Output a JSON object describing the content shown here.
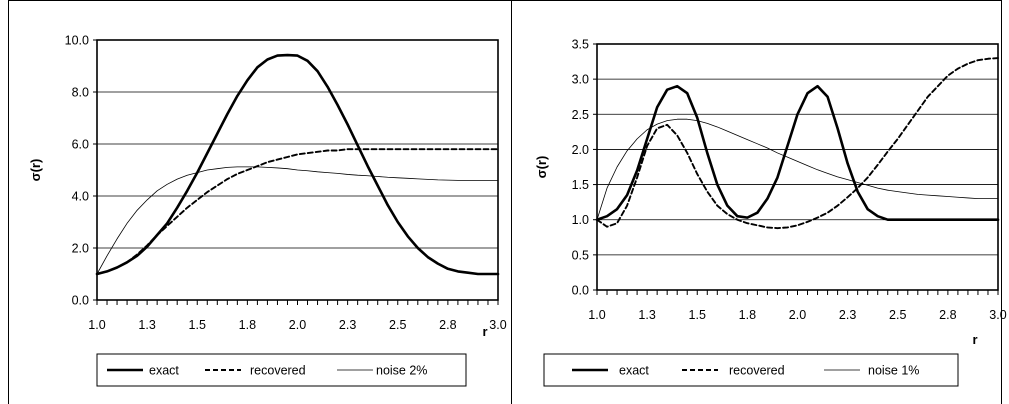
{
  "chart_data": [
    {
      "type": "line",
      "xlabel": "r",
      "ylabel": "σ(r)",
      "xlim": [
        1.0,
        3.0
      ],
      "ylim": [
        0.0,
        10.0
      ],
      "x_ticks": [
        "1.0",
        "1.3",
        "1.5",
        "1.8",
        "2.0",
        "2.3",
        "2.5",
        "2.8",
        "3.0"
      ],
      "y_ticks": [
        "0.0",
        "2.0",
        "4.0",
        "6.0",
        "8.0",
        "10.0"
      ],
      "y_tick_values": [
        0,
        2,
        4,
        6,
        8,
        10
      ],
      "grid": "horizontal",
      "legend_position": "bottom",
      "series": [
        {
          "name": "exact",
          "style": "solid-thick",
          "x": [
            1.0,
            1.05,
            1.1,
            1.15,
            1.2,
            1.25,
            1.3,
            1.35,
            1.4,
            1.45,
            1.5,
            1.55,
            1.6,
            1.65,
            1.7,
            1.75,
            1.8,
            1.85,
            1.9,
            1.95,
            2.0,
            2.05,
            2.1,
            2.15,
            2.2,
            2.25,
            2.3,
            2.35,
            2.4,
            2.45,
            2.5,
            2.55,
            2.6,
            2.65,
            2.7,
            2.75,
            2.8,
            2.85,
            2.9,
            2.95,
            3.0
          ],
          "y": [
            1.0,
            1.1,
            1.25,
            1.45,
            1.7,
            2.05,
            2.5,
            2.95,
            3.55,
            4.2,
            4.9,
            5.65,
            6.4,
            7.15,
            7.85,
            8.45,
            8.95,
            9.25,
            9.4,
            9.42,
            9.4,
            9.2,
            8.8,
            8.2,
            7.5,
            6.75,
            5.95,
            5.15,
            4.4,
            3.65,
            3.0,
            2.45,
            2.0,
            1.65,
            1.4,
            1.2,
            1.1,
            1.05,
            1.0,
            1.0,
            1.0
          ]
        },
        {
          "name": "recovered",
          "style": "dashed",
          "x": [
            1.0,
            1.05,
            1.1,
            1.15,
            1.2,
            1.25,
            1.3,
            1.35,
            1.4,
            1.45,
            1.5,
            1.55,
            1.6,
            1.65,
            1.7,
            1.75,
            1.8,
            1.85,
            1.9,
            1.95,
            2.0,
            2.05,
            2.1,
            2.15,
            2.2,
            2.25,
            2.3,
            2.35,
            2.4,
            2.45,
            2.5,
            2.55,
            2.6,
            2.65,
            2.7,
            2.75,
            2.8,
            2.85,
            2.9,
            2.95,
            3.0
          ],
          "y": [
            1.0,
            1.1,
            1.25,
            1.45,
            1.75,
            2.1,
            2.5,
            2.85,
            3.2,
            3.55,
            3.85,
            4.15,
            4.4,
            4.65,
            4.85,
            5.0,
            5.15,
            5.3,
            5.4,
            5.5,
            5.6,
            5.65,
            5.7,
            5.75,
            5.75,
            5.8,
            5.8,
            5.8,
            5.8,
            5.8,
            5.8,
            5.8,
            5.8,
            5.8,
            5.8,
            5.8,
            5.8,
            5.8,
            5.8,
            5.8,
            5.8
          ]
        },
        {
          "name": "noise 2%",
          "style": "solid-thin",
          "x": [
            1.0,
            1.05,
            1.1,
            1.15,
            1.2,
            1.25,
            1.3,
            1.35,
            1.4,
            1.45,
            1.5,
            1.55,
            1.6,
            1.65,
            1.7,
            1.75,
            1.8,
            1.85,
            1.9,
            1.95,
            2.0,
            2.05,
            2.1,
            2.15,
            2.2,
            2.25,
            2.3,
            2.35,
            2.4,
            2.45,
            2.5,
            2.55,
            2.6,
            2.65,
            2.7,
            2.75,
            2.8,
            2.85,
            2.9,
            2.95,
            3.0
          ],
          "y": [
            1.0,
            1.7,
            2.35,
            2.95,
            3.45,
            3.85,
            4.2,
            4.45,
            4.65,
            4.8,
            4.9,
            5.0,
            5.05,
            5.1,
            5.12,
            5.12,
            5.12,
            5.1,
            5.08,
            5.05,
            5.0,
            4.97,
            4.93,
            4.9,
            4.87,
            4.83,
            4.8,
            4.78,
            4.75,
            4.72,
            4.7,
            4.68,
            4.66,
            4.64,
            4.62,
            4.61,
            4.6,
            4.6,
            4.6,
            4.6,
            4.6
          ]
        }
      ]
    },
    {
      "type": "line",
      "xlabel": "r",
      "ylabel": "σ(r)",
      "xlim": [
        1.0,
        3.0
      ],
      "ylim": [
        0.0,
        3.5
      ],
      "x_ticks": [
        "1.0",
        "1.3",
        "1.5",
        "1.8",
        "2.0",
        "2.3",
        "2.5",
        "2.8",
        "3.0"
      ],
      "y_ticks": [
        "0.0",
        "0.5",
        "1.0",
        "1.5",
        "2.0",
        "2.5",
        "3.0",
        "3.5"
      ],
      "y_tick_values": [
        0,
        0.5,
        1,
        1.5,
        2,
        2.5,
        3,
        3.5
      ],
      "grid": "horizontal",
      "legend_position": "bottom",
      "series": [
        {
          "name": "exact",
          "style": "solid-thick",
          "x": [
            1.0,
            1.05,
            1.1,
            1.15,
            1.2,
            1.25,
            1.3,
            1.35,
            1.4,
            1.45,
            1.5,
            1.55,
            1.6,
            1.65,
            1.7,
            1.75,
            1.8,
            1.85,
            1.9,
            1.95,
            2.0,
            2.05,
            2.1,
            2.15,
            2.2,
            2.25,
            2.3,
            2.35,
            2.4,
            2.45,
            2.5,
            2.55,
            2.6,
            2.65,
            2.7,
            2.75,
            2.8,
            2.85,
            2.9,
            2.95,
            3.0
          ],
          "y": [
            1.0,
            1.05,
            1.15,
            1.35,
            1.7,
            2.15,
            2.6,
            2.85,
            2.9,
            2.8,
            2.45,
            1.95,
            1.5,
            1.2,
            1.05,
            1.03,
            1.1,
            1.3,
            1.6,
            2.05,
            2.5,
            2.8,
            2.9,
            2.75,
            2.3,
            1.8,
            1.4,
            1.15,
            1.05,
            1.0,
            1.0,
            1.0,
            1.0,
            1.0,
            1.0,
            1.0,
            1.0,
            1.0,
            1.0,
            1.0,
            1.0
          ]
        },
        {
          "name": "recovered",
          "style": "dashed",
          "x": [
            1.0,
            1.05,
            1.1,
            1.15,
            1.2,
            1.25,
            1.3,
            1.35,
            1.4,
            1.45,
            1.5,
            1.55,
            1.6,
            1.65,
            1.7,
            1.75,
            1.8,
            1.85,
            1.9,
            1.95,
            2.0,
            2.05,
            2.1,
            2.15,
            2.2,
            2.25,
            2.3,
            2.35,
            2.4,
            2.45,
            2.5,
            2.55,
            2.6,
            2.65,
            2.7,
            2.75,
            2.8,
            2.85,
            2.9,
            2.95,
            3.0
          ],
          "y": [
            1.0,
            0.9,
            0.95,
            1.2,
            1.6,
            2.05,
            2.3,
            2.35,
            2.2,
            1.95,
            1.65,
            1.4,
            1.2,
            1.08,
            1.0,
            0.95,
            0.92,
            0.89,
            0.88,
            0.89,
            0.92,
            0.97,
            1.03,
            1.1,
            1.2,
            1.32,
            1.45,
            1.6,
            1.78,
            1.97,
            2.15,
            2.35,
            2.55,
            2.75,
            2.9,
            3.05,
            3.15,
            3.22,
            3.27,
            3.29,
            3.3
          ]
        },
        {
          "name": "noise 1%",
          "style": "solid-thin",
          "x": [
            1.0,
            1.05,
            1.1,
            1.15,
            1.2,
            1.25,
            1.3,
            1.35,
            1.4,
            1.45,
            1.5,
            1.55,
            1.6,
            1.65,
            1.7,
            1.75,
            1.8,
            1.85,
            1.9,
            1.95,
            2.0,
            2.05,
            2.1,
            2.15,
            2.2,
            2.25,
            2.3,
            2.35,
            2.4,
            2.45,
            2.5,
            2.55,
            2.6,
            2.65,
            2.7,
            2.75,
            2.8,
            2.85,
            2.9,
            2.95,
            3.0
          ],
          "y": [
            1.0,
            1.45,
            1.75,
            1.98,
            2.15,
            2.28,
            2.36,
            2.41,
            2.43,
            2.43,
            2.41,
            2.37,
            2.32,
            2.26,
            2.2,
            2.14,
            2.08,
            2.02,
            1.95,
            1.89,
            1.83,
            1.77,
            1.71,
            1.66,
            1.61,
            1.57,
            1.53,
            1.49,
            1.45,
            1.42,
            1.4,
            1.38,
            1.36,
            1.35,
            1.34,
            1.33,
            1.32,
            1.31,
            1.3,
            1.3,
            1.3
          ]
        }
      ]
    }
  ]
}
